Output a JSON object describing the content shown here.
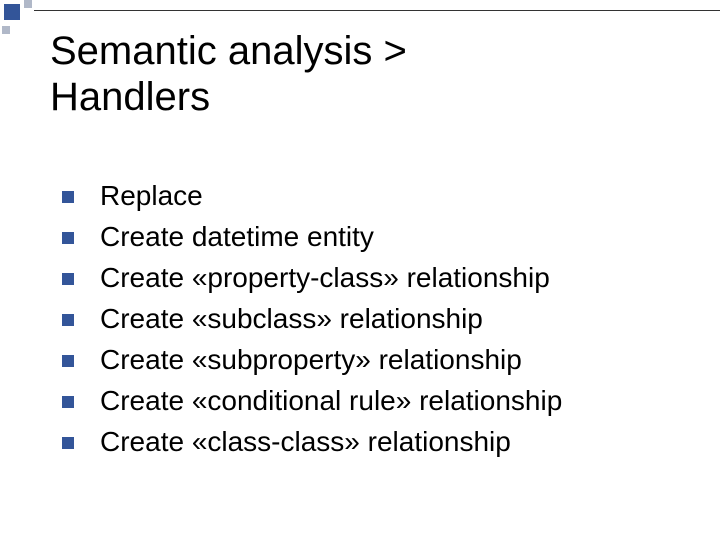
{
  "colors": {
    "accent": "#335599",
    "deco_light": "#b0b8c8",
    "text": "#000000",
    "background": "#ffffff",
    "rule": "#333333"
  },
  "typography": {
    "title_fontsize": 40,
    "body_fontsize": 28,
    "font_family": "Arial"
  },
  "title": {
    "line1": "Semantic analysis >",
    "line2": "Handlers"
  },
  "bullets": [
    {
      "text": "Replace"
    },
    {
      "text": "Create datetime entity"
    },
    {
      "text": "Create «property-class» relationship"
    },
    {
      "text": "Create «subclass» relationship"
    },
    {
      "text": "Create «subproperty» relationship"
    },
    {
      "text": "Create «conditional rule» relationship"
    },
    {
      "text": "Create «class-class» relationship"
    }
  ]
}
